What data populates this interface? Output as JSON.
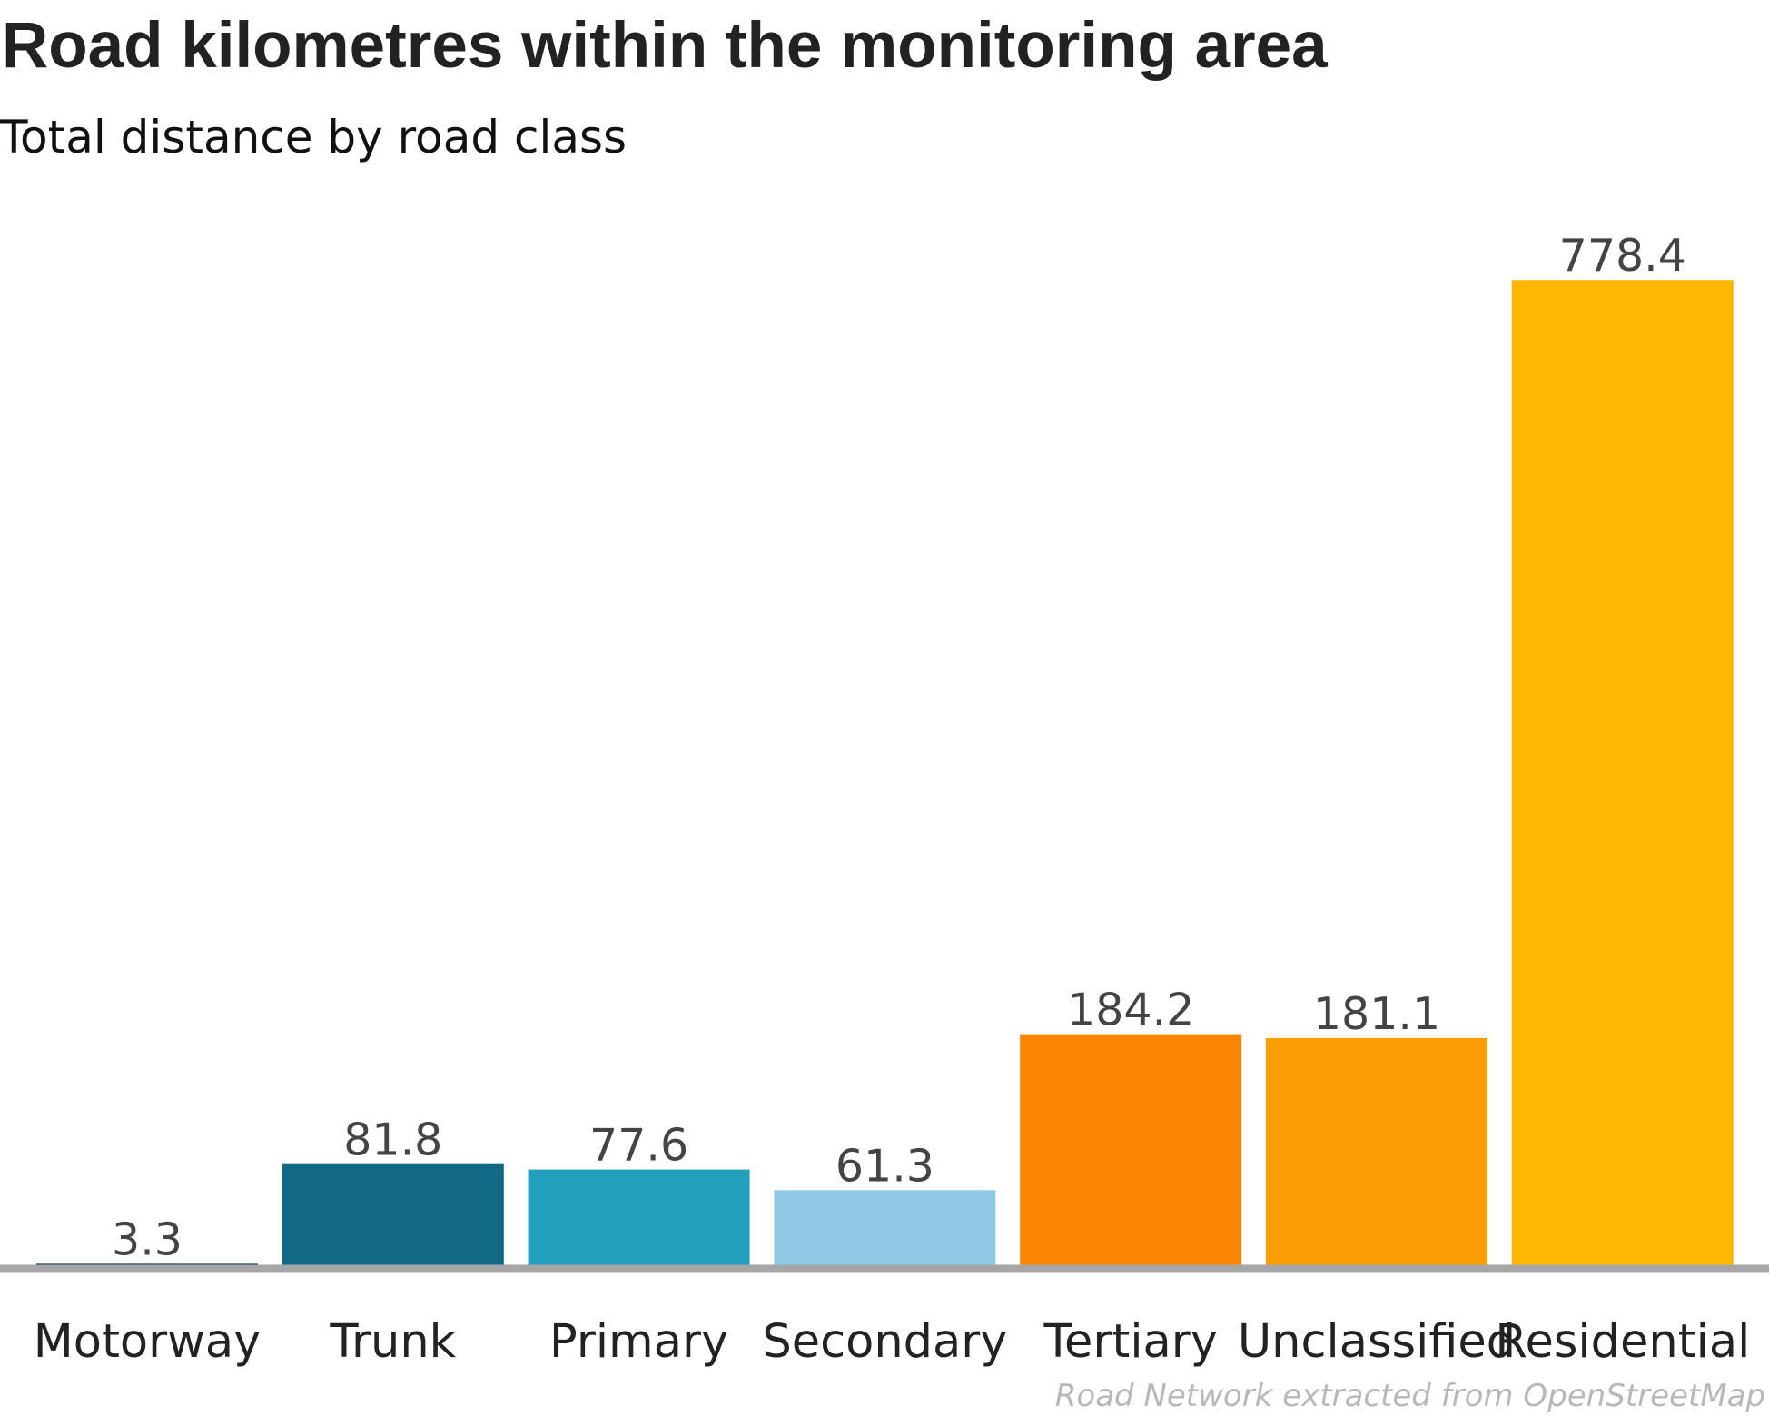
{
  "chart_data": {
    "type": "bar",
    "title": "Road kilometres within the monitoring area",
    "subtitle": "Total distance by road class",
    "categories": [
      "Motorway",
      "Trunk",
      "Primary",
      "Secondary",
      "Tertiary",
      "Unclassified",
      "Residential"
    ],
    "values": [
      3.3,
      81.8,
      77.6,
      61.3,
      184.2,
      181.1,
      778.4
    ],
    "value_labels": [
      "3.3",
      "81.8",
      "77.6",
      "61.3",
      "184.2",
      "181.1",
      "778.4"
    ],
    "colors": [
      "#0e3753",
      "#126984",
      "#229fbd",
      "#8fc9e5",
      "#fb8502",
      "#fc9e05",
      "#feb702"
    ],
    "xlabel": "",
    "ylabel": "",
    "ylim": [
      0,
      780
    ],
    "grid": false,
    "legend": "none",
    "caption": "Road Network extracted from OpenStreetMap"
  }
}
